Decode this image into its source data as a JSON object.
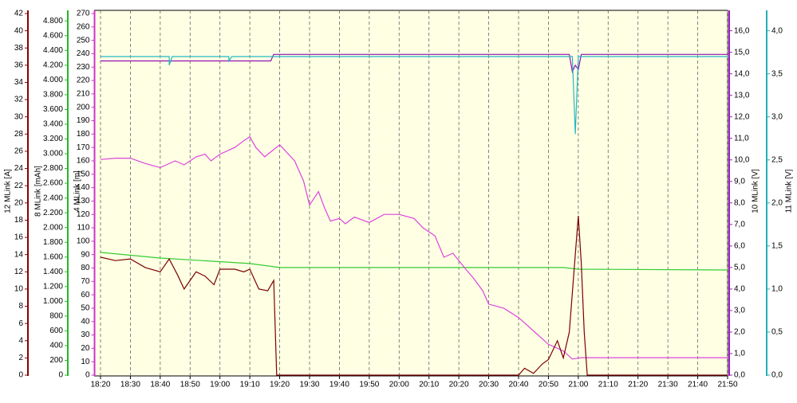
{
  "chart_data": {
    "type": "line",
    "grid": true,
    "background": "#ffffe4",
    "xlim": [
      "18:18",
      "21:50"
    ],
    "xticks": [
      "18:20",
      "18:30",
      "18:40",
      "18:50",
      "19:00",
      "19:10",
      "19:20",
      "19:30",
      "19:40",
      "19:50",
      "20:00",
      "20:10",
      "20:20",
      "20:30",
      "20:40",
      "20:50",
      "21:00",
      "21:10",
      "21:20",
      "21:30",
      "21:40",
      "21:50"
    ],
    "axes": [
      {
        "label": "12 MLink [A]",
        "color": "#8b0000",
        "side": "left",
        "ylim": [
          0,
          42
        ],
        "yticks": [
          0,
          2,
          4,
          6,
          8,
          10,
          12,
          14,
          16,
          18,
          20,
          22,
          24,
          26,
          28,
          30,
          32,
          34,
          36,
          38,
          40,
          42
        ]
      },
      {
        "label": "8 MLink [mAh]",
        "color": "#22bb22",
        "side": "left",
        "ylim": [
          0,
          4900
        ],
        "yticks": [
          0,
          200,
          400,
          600,
          800,
          {
            "value": 1000,
            "label": "1.000"
          },
          {
            "value": 1200,
            "label": "1.200"
          },
          {
            "value": 1400,
            "label": "1.400"
          },
          {
            "value": 1600,
            "label": "1.600"
          },
          {
            "value": 1800,
            "label": "1.800"
          },
          {
            "value": 2000,
            "label": "2.000"
          },
          {
            "value": 2200,
            "label": "2.200"
          },
          {
            "value": 2400,
            "label": "2.400"
          },
          {
            "value": 2600,
            "label": "2.600"
          },
          {
            "value": 2800,
            "label": "2.800"
          },
          {
            "value": 3000,
            "label": "3.000"
          },
          {
            "value": 3200,
            "label": "3.200"
          },
          {
            "value": 3400,
            "label": "3.400"
          },
          {
            "value": 3600,
            "label": "3.600"
          },
          {
            "value": 3800,
            "label": "3.800"
          },
          {
            "value": 4000,
            "label": "4.000"
          },
          {
            "value": 4200,
            "label": "4.200"
          },
          {
            "value": 4400,
            "label": "4.400"
          },
          {
            "value": 4600,
            "label": "4.600"
          },
          {
            "value": 4800,
            "label": "4.800"
          }
        ]
      },
      {
        "label": "4 MLink [m]",
        "color": "#cc33cc",
        "side": "left",
        "ylim": [
          0,
          270
        ],
        "yticks": [
          0,
          10,
          20,
          30,
          40,
          50,
          60,
          70,
          80,
          90,
          100,
          110,
          120,
          130,
          140,
          150,
          160,
          170,
          180,
          190,
          200,
          210,
          220,
          230,
          240,
          250,
          260,
          270
        ]
      },
      {
        "label": "10 MLink [V]",
        "color": "#a020c0",
        "side": "right",
        "ylim": [
          0,
          16.8
        ],
        "yticks": [
          {
            "value": 0,
            "label": "0,0"
          },
          {
            "value": 1,
            "label": "1,0"
          },
          {
            "value": 2,
            "label": "2,0"
          },
          {
            "value": 3,
            "label": "3,0"
          },
          {
            "value": 4,
            "label": "4,0"
          },
          {
            "value": 5,
            "label": "5,0"
          },
          {
            "value": 6,
            "label": "6,0"
          },
          {
            "value": 7,
            "label": "7,0"
          },
          {
            "value": 8,
            "label": "8,0"
          },
          {
            "value": 9,
            "label": "9,0"
          },
          {
            "value": 10,
            "label": "10,0"
          },
          {
            "value": 11,
            "label": "11,0"
          },
          {
            "value": 12,
            "label": "12,0"
          },
          {
            "value": 13,
            "label": "13,0"
          },
          {
            "value": 14,
            "label": "14,0"
          },
          {
            "value": 15,
            "label": "15,0"
          },
          {
            "value": 16,
            "label": "16,0"
          }
        ]
      },
      {
        "label": "11 MLink [V]",
        "color": "#22b0b8",
        "side": "right",
        "ylim": [
          0,
          4.2
        ],
        "yticks": [
          {
            "value": 0,
            "label": "0,0"
          },
          {
            "value": 0.5,
            "label": "0,5"
          },
          {
            "value": 1,
            "label": "1,0"
          },
          {
            "value": 1.5,
            "label": "1,5"
          },
          {
            "value": 2,
            "label": "2,0"
          },
          {
            "value": 2.5,
            "label": "2,5"
          },
          {
            "value": 3,
            "label": "3,0"
          },
          {
            "value": 3.5,
            "label": "3,5"
          },
          {
            "value": 4,
            "label": "4,0"
          }
        ]
      }
    ],
    "series": [
      {
        "axis": 1,
        "color": "#33cc33",
        "x": [
          "18:20",
          "18:40",
          "19:10",
          "19:20",
          "20:55",
          "21:00",
          "21:50"
        ],
        "values": [
          1663,
          1587,
          1512,
          1458,
          1458,
          1436,
          1425
        ]
      },
      {
        "axis": 2,
        "color": "#dd44dd",
        "x": [
          "18:20",
          "18:25",
          "18:30",
          "18:35",
          "18:40",
          "18:45",
          "18:48",
          "18:52",
          "18:55",
          "18:57",
          "19:00",
          "19:05",
          "19:08",
          "19:10",
          "19:12",
          "19:15",
          "19:20",
          "19:25",
          "19:28",
          "19:30",
          "19:33",
          "19:35",
          "19:37",
          "19:40",
          "19:42",
          "19:45",
          "19:50",
          "19:55",
          "20:00",
          "20:05",
          "20:08",
          "20:12",
          "20:15",
          "20:18",
          "20:22",
          "20:25",
          "20:28",
          "20:30",
          "20:35",
          "20:40",
          "20:45",
          "20:50",
          "20:55",
          "20:58",
          "21:01",
          "21:50"
        ],
        "values": [
          161,
          162,
          162,
          158,
          155,
          160,
          157,
          163,
          165,
          160,
          165,
          170,
          175,
          178,
          170,
          163,
          172,
          160,
          145,
          127,
          137,
          125,
          115,
          117,
          113,
          118,
          114,
          120,
          120,
          117,
          110,
          104,
          88,
          91,
          80,
          72,
          63,
          53,
          50,
          43,
          33,
          23,
          18,
          12,
          13,
          13
        ]
      },
      {
        "axis": 0,
        "color": "#7a0000",
        "x": [
          "18:20",
          "18:25",
          "18:30",
          "18:35",
          "18:40",
          "18:43",
          "18:46",
          "18:48",
          "18:52",
          "18:55",
          "18:58",
          "19:00",
          "19:05",
          "19:08",
          "19:10",
          "19:13",
          "19:16",
          "19:18",
          "19:19",
          "20:40",
          "20:42",
          "20:45",
          "20:48",
          "20:50",
          "20:53",
          "20:55",
          "20:57",
          "20:59",
          "21:00",
          "21:01",
          "21:02",
          "21:03",
          "21:50"
        ],
        "values": [
          13.7,
          13.3,
          13.5,
          12.5,
          12,
          13.5,
          11.5,
          10,
          12,
          11.5,
          10.5,
          12.3,
          12.3,
          12,
          12.3,
          10,
          9.8,
          11,
          0,
          0,
          0.8,
          0.2,
          1.3,
          1.8,
          4,
          2,
          5,
          14,
          18.5,
          13,
          5,
          0,
          0
        ]
      },
      {
        "axis": 3,
        "color": "#9010b0",
        "x": [
          "18:20",
          "19:17",
          "19:18",
          "20:57",
          "20:58",
          "20:59",
          "21:00",
          "21:01",
          "21:50"
        ],
        "values": [
          14.6,
          14.6,
          14.9,
          14.9,
          14.1,
          14.4,
          14.2,
          14.9,
          14.9
        ]
      },
      {
        "axis": 4,
        "color": "#22b8c0",
        "x": [
          "18:20",
          "18:43",
          "18:43",
          "18:44",
          "19:03",
          "19:03",
          "19:04",
          "20:58",
          "20:59",
          "21:00",
          "21:50"
        ],
        "values": [
          3.7,
          3.7,
          3.6,
          3.7,
          3.7,
          3.65,
          3.7,
          3.7,
          2.8,
          3.7,
          3.7
        ]
      }
    ]
  }
}
